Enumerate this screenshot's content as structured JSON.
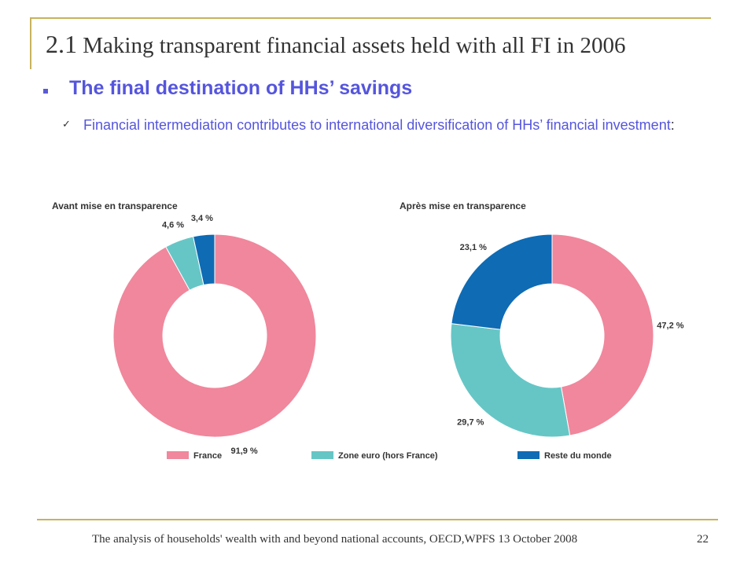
{
  "slide": {
    "title_number": "2.1",
    "title_text": "Making transparent financial assets held with all FI in 2006",
    "heading": "The final destination of HHs’ savings",
    "subtext": "Financial intermediation contributes to international diversification of HHs’ financial investment",
    "subtext_end": ":",
    "bullet_icon": "square-bullet-icon",
    "check_icon": "checkmark-icon",
    "check_glyph": "✓"
  },
  "footer": {
    "text": "The analysis of households' wealth with and beyond national accounts, OECD,WPFS 13 October 2008",
    "page_number": "22"
  },
  "chart_data": [
    {
      "type": "pie",
      "title": "Avant mise en transparence",
      "categories": [
        "France",
        "Zone euro (hors France)",
        "Reste du monde"
      ],
      "values": [
        91.9,
        4.6,
        3.4
      ],
      "labels": [
        "91,9 %",
        "4,6 %",
        "3,4 %"
      ],
      "colors": [
        "#f0879c",
        "#66c6c6",
        "#0e6bb4"
      ],
      "donut": true
    },
    {
      "type": "pie",
      "title": "Après mise en transparence",
      "categories": [
        "France",
        "Zone euro (hors France)",
        "Reste du monde"
      ],
      "values": [
        47.2,
        29.7,
        23.1
      ],
      "labels": [
        "47,2 %",
        "29,7 %",
        "23,1 %"
      ],
      "colors": [
        "#f0879c",
        "#66c6c6",
        "#0e6bb4"
      ],
      "donut": true
    }
  ],
  "legend": {
    "items": [
      {
        "label": "France",
        "color": "#f0879c"
      },
      {
        "label": "Zone euro (hors France)",
        "color": "#66c6c6"
      },
      {
        "label": "Reste du monde",
        "color": "#0e6bb4"
      }
    ]
  }
}
